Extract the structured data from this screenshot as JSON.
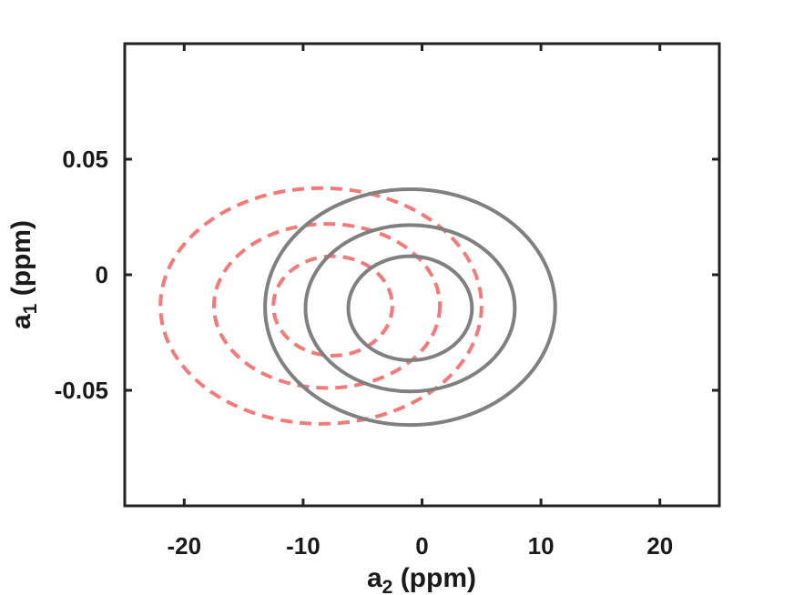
{
  "chart_data": {
    "type": "contour",
    "xlabel": "a",
    "xlabel_sub": "2",
    "xlabel_unit": " (ppm)",
    "ylabel": "a",
    "ylabel_sub": "1",
    "ylabel_unit": " (ppm)",
    "xlim": [
      -25,
      25
    ],
    "ylim": [
      -0.1,
      0.1
    ],
    "xticks": [
      -20,
      -10,
      0,
      10,
      20
    ],
    "xtick_labels": [
      "-20",
      "-10",
      "0",
      "10",
      "20"
    ],
    "yticks": [
      0.05,
      0,
      -0.05
    ],
    "ytick_labels": [
      "0.05",
      "0",
      "-0.05"
    ],
    "grid": false,
    "legend": "none",
    "series": [
      {
        "style": "dashed",
        "color": "#f47a7a",
        "contours": [
          {
            "cx": -7.5,
            "cy": -0.0135,
            "rx": 5.0,
            "ry": 0.0215
          },
          {
            "cx": -8.0,
            "cy": -0.0135,
            "rx": 9.5,
            "ry": 0.0355
          },
          {
            "cx": -8.5,
            "cy": -0.0135,
            "rx": 13.5,
            "ry": 0.051
          }
        ]
      },
      {
        "style": "solid",
        "color": "#808080",
        "contours": [
          {
            "cx": -1.0,
            "cy": -0.0145,
            "rx": 5.2,
            "ry": 0.0225
          },
          {
            "cx": -1.0,
            "cy": -0.0145,
            "rx": 8.8,
            "ry": 0.036
          },
          {
            "cx": -1.0,
            "cy": -0.014,
            "rx": 12.2,
            "ry": 0.051
          }
        ]
      }
    ]
  }
}
